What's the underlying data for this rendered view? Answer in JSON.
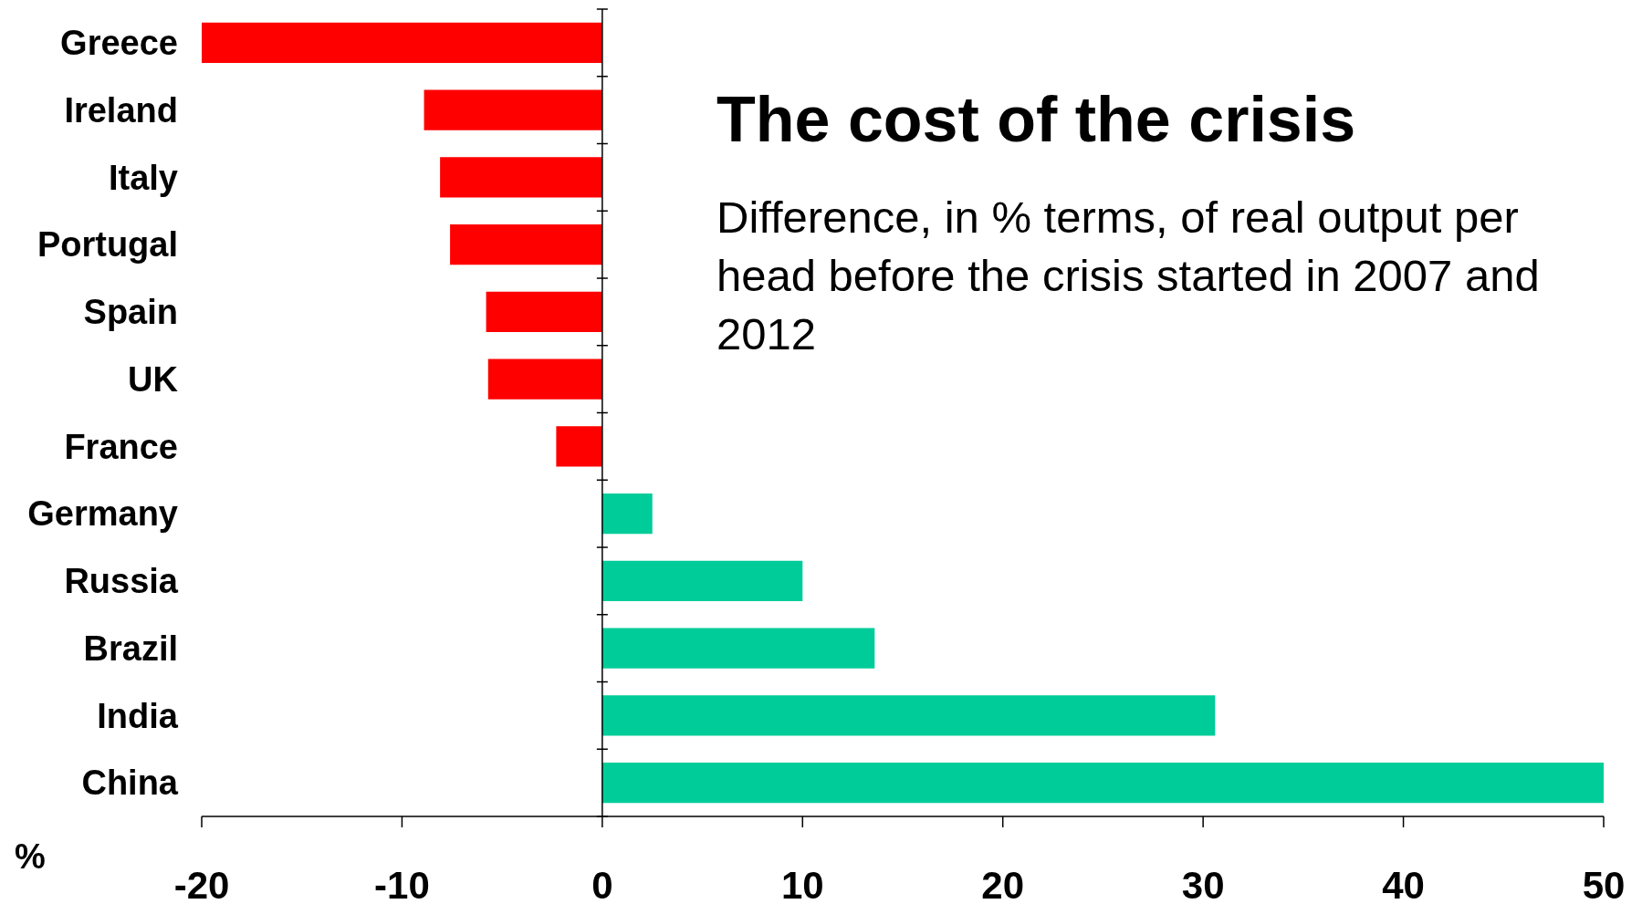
{
  "chart_data": {
    "type": "bar",
    "orientation": "horizontal",
    "title": "The cost of the crisis",
    "subtitle": "Difference, in % terms, of real output per head before the crisis started in 2007 and 2012",
    "xlabel": "%",
    "categories": [
      "Greece",
      "Ireland",
      "Italy",
      "Portugal",
      "Spain",
      "UK",
      "France",
      "Germany",
      "Russia",
      "Brazil",
      "India",
      "China"
    ],
    "values": [
      -20,
      -8.9,
      -8.1,
      -7.6,
      -5.8,
      -5.7,
      -2.3,
      2.5,
      10,
      13.6,
      30.6,
      50
    ],
    "colors": [
      "#ff0000",
      "#ff0000",
      "#ff0000",
      "#ff0000",
      "#ff0000",
      "#ff0000",
      "#ff0000",
      "#00cc99",
      "#00cc99",
      "#00cc99",
      "#00cc99",
      "#00cc99"
    ],
    "xlim": [
      -20,
      50
    ],
    "xticks": [
      -20,
      -10,
      0,
      10,
      20,
      30,
      40,
      50
    ]
  }
}
